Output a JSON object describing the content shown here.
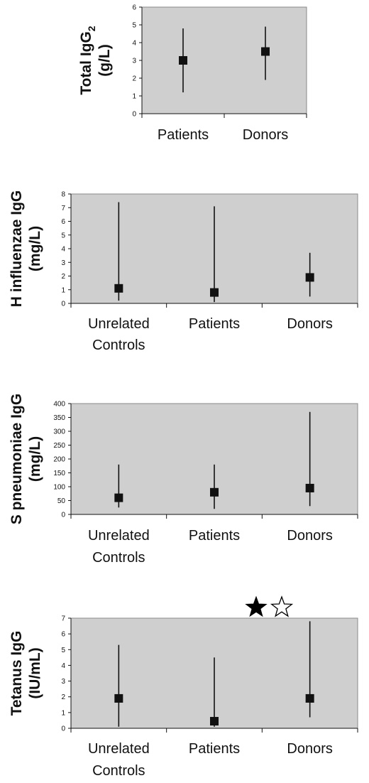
{
  "chart_data": [
    {
      "type": "scatter",
      "ylabel_lines": [
        "Total IgG",
        "(g/L)"
      ],
      "ylabel_subscript": "2",
      "categories": [
        "Patients",
        "Donors"
      ],
      "ylim": [
        0,
        6
      ],
      "yticks": [
        "0",
        "1",
        "2",
        "3",
        "4",
        "5",
        "6"
      ],
      "points": [
        {
          "category": "Patients",
          "value": 3.0,
          "low": 1.2,
          "high": 4.8
        },
        {
          "category": "Donors",
          "value": 3.5,
          "low": 1.9,
          "high": 4.9
        }
      ],
      "grid": false
    },
    {
      "type": "scatter",
      "ylabel_lines": [
        "H influenzae IgG",
        "(mg/L)"
      ],
      "categories": [
        "Unrelated Controls",
        "Patients",
        "Donors"
      ],
      "category_lines": [
        [
          "Unrelated",
          "Controls"
        ],
        [
          "Patients"
        ],
        [
          "Donors"
        ]
      ],
      "ylim": [
        0,
        8
      ],
      "yticks": [
        "0",
        "1",
        "2",
        "3",
        "4",
        "5",
        "6",
        "7",
        "8"
      ],
      "points": [
        {
          "category": "Unrelated Controls",
          "value": 1.1,
          "low": 0.2,
          "high": 7.4
        },
        {
          "category": "Patients",
          "value": 0.8,
          "low": 0.1,
          "high": 7.1
        },
        {
          "category": "Donors",
          "value": 1.9,
          "low": 0.5,
          "high": 3.7
        }
      ],
      "grid": false
    },
    {
      "type": "scatter",
      "ylabel_lines": [
        "S pneumoniae IgG",
        "(mg/L)"
      ],
      "categories": [
        "Unrelated Controls",
        "Patients",
        "Donors"
      ],
      "category_lines": [
        [
          "Unrelated",
          "Controls"
        ],
        [
          "Patients"
        ],
        [
          "Donors"
        ]
      ],
      "ylim": [
        0,
        400
      ],
      "yticks": [
        "0",
        "50",
        "100",
        "150",
        "200",
        "250",
        "300",
        "350",
        "400"
      ],
      "points": [
        {
          "category": "Unrelated Controls",
          "value": 60,
          "low": 25,
          "high": 180
        },
        {
          "category": "Patients",
          "value": 80,
          "low": 20,
          "high": 180
        },
        {
          "category": "Donors",
          "value": 95,
          "low": 30,
          "high": 370
        }
      ],
      "grid": false
    },
    {
      "type": "scatter",
      "ylabel_lines": [
        "Tetanus IgG",
        "(IU/mL)"
      ],
      "categories": [
        "Unrelated Controls",
        "Patients",
        "Donors"
      ],
      "category_lines": [
        [
          "Unrelated",
          "Controls"
        ],
        [
          "Patients"
        ],
        [
          "Donors"
        ]
      ],
      "ylim": [
        0,
        7
      ],
      "yticks": [
        "0",
        "1",
        "2",
        "3",
        "4",
        "5",
        "6",
        "7"
      ],
      "points": [
        {
          "category": "Unrelated Controls",
          "value": 1.9,
          "low": 0.1,
          "high": 5.3
        },
        {
          "category": "Patients",
          "value": 0.45,
          "low": 0.1,
          "high": 4.5
        },
        {
          "category": "Donors",
          "value": 1.9,
          "low": 0.7,
          "high": 6.8
        }
      ],
      "annotations": [
        "filled-star",
        "open-star"
      ],
      "grid": false
    }
  ],
  "colors": {
    "plot_background": "#cfcfcf",
    "marker": "#111111",
    "whisker": "#111111",
    "axis": "#111111"
  }
}
